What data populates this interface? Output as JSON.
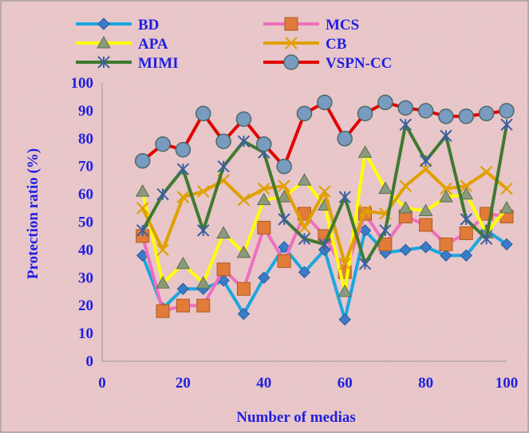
{
  "chart_data": {
    "type": "line",
    "xlabel": "Number of medias",
    "ylabel": "Protection ratio  (%)",
    "xlim": [
      0,
      100
    ],
    "ylim": [
      0,
      100
    ],
    "x_ticks": [
      "0",
      "20",
      "40",
      "60",
      "80",
      "100"
    ],
    "y_ticks": [
      "0",
      "10",
      "20",
      "30",
      "40",
      "50",
      "60",
      "70",
      "80",
      "90",
      "100"
    ],
    "grid": false,
    "legend_position": "top",
    "x": [
      10,
      15,
      20,
      25,
      30,
      35,
      40,
      45,
      50,
      55,
      60,
      65,
      70,
      75,
      80,
      85,
      90,
      95,
      100
    ],
    "series": [
      {
        "name": "BD",
        "color": "#1ba6e0",
        "marker": "diamond",
        "values": [
          38,
          19,
          26,
          26,
          29,
          17,
          30,
          41,
          32,
          40,
          15,
          47,
          39,
          40,
          41,
          38,
          38,
          47,
          42
        ]
      },
      {
        "name": "MCS",
        "color": "#f06fbd",
        "marker": "square",
        "values": [
          45,
          18,
          20,
          20,
          33,
          26,
          48,
          36,
          53,
          45,
          32,
          53,
          42,
          52,
          49,
          42,
          46,
          53,
          52
        ]
      },
      {
        "name": "APA",
        "color": "#ffff00",
        "marker": "triangle",
        "values": [
          61,
          28,
          35,
          28,
          46,
          39,
          58,
          59,
          65,
          56,
          25,
          75,
          62,
          55,
          54,
          59,
          60,
          46,
          55
        ]
      },
      {
        "name": "CB",
        "color": "#e0a000",
        "marker": "x",
        "values": [
          55,
          40,
          59,
          61,
          65,
          58,
          62,
          63,
          48,
          61,
          35,
          54,
          53,
          63,
          69,
          62,
          63,
          68,
          62
        ]
      },
      {
        "name": "MIMI",
        "color": "#3f7a2f",
        "marker": "star",
        "values": [
          47,
          60,
          69,
          47,
          70,
          79,
          75,
          51,
          44,
          42,
          59,
          35,
          47,
          85,
          72,
          81,
          51,
          44,
          85
        ]
      },
      {
        "name": "VSPN-CC",
        "color": "#e00000",
        "marker": "circle",
        "values": [
          72,
          78,
          76,
          89,
          79,
          87,
          78,
          70,
          89,
          93,
          80,
          89,
          93,
          91,
          90,
          88,
          88,
          89,
          90
        ]
      }
    ]
  }
}
